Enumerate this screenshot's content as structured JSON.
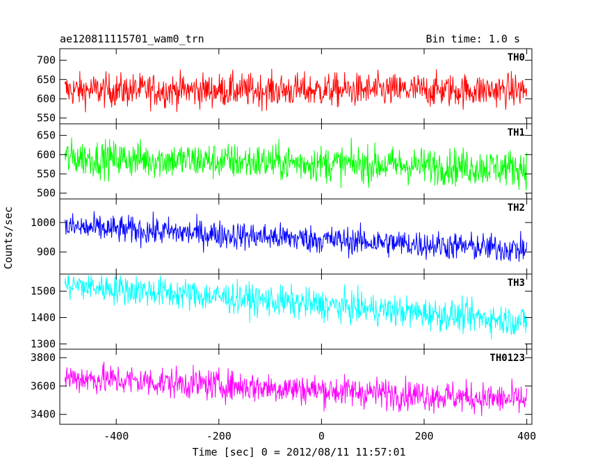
{
  "chart_data": {
    "type": "line",
    "title": "ae120811115701_wam0_trn",
    "subtitle": "Bin time: 1.0 s",
    "xlabel": "Time [sec] 0 = 2012/08/11 11:57:01",
    "ylabel": "Counts/sec",
    "xlim": [
      -510,
      410
    ],
    "xticks": [
      -400,
      -200,
      0,
      200,
      400
    ],
    "x_range": [
      -500,
      400
    ],
    "x_step": 1,
    "grid": false,
    "panels": [
      {
        "name": "TH0",
        "color": "#ff0000",
        "ylim": [
          535,
          730
        ],
        "yticks": [
          550,
          600,
          650,
          700
        ],
        "level_start": 622,
        "level_end": 622,
        "noise": 22,
        "min": 545,
        "max": 730
      },
      {
        "name": "TH1",
        "color": "#00ff00",
        "ylim": [
          485,
          680
        ],
        "yticks": [
          500,
          550,
          600,
          650
        ],
        "level_start": 592,
        "level_end": 565,
        "noise": 24,
        "min": 490,
        "max": 675
      },
      {
        "name": "TH2",
        "color": "#0000ff",
        "ylim": [
          825,
          1080
        ],
        "yticks": [
          900,
          1000
        ],
        "level_start": 985,
        "level_end": 908,
        "noise": 24,
        "min": 830,
        "max": 1080
      },
      {
        "name": "TH3",
        "color": "#00ffff",
        "ylim": [
          1280,
          1565
        ],
        "yticks": [
          1300,
          1400,
          1500
        ],
        "level_start": 1525,
        "level_end": 1385,
        "noise": 30,
        "min": 1295,
        "max": 1560
      },
      {
        "name": "TH0123",
        "color": "#ff00ff",
        "ylim": [
          3330,
          3860
        ],
        "yticks": [
          3400,
          3600,
          3800
        ],
        "level_start": 3660,
        "level_end": 3500,
        "noise": 55,
        "min": 3380,
        "max": 3850
      }
    ]
  }
}
